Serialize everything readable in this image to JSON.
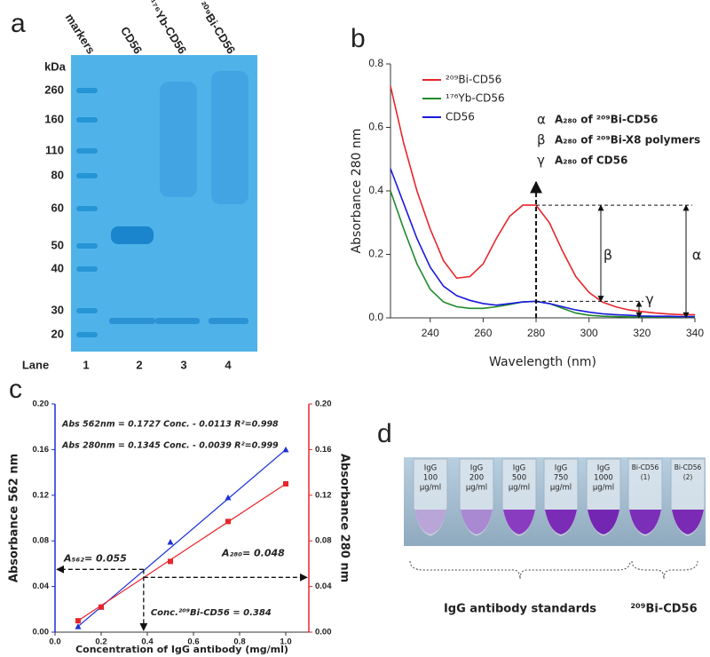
{
  "panels": {
    "a": {
      "letter": "a",
      "lane_names": [
        "markers",
        "CD56",
        "¹⁷⁶Yb-CD56",
        "²⁰⁹Bi-CD56"
      ],
      "unit": "kDa",
      "markers": [
        260,
        160,
        110,
        80,
        60,
        50,
        40,
        30,
        20
      ],
      "lane_label": "Lane",
      "lanes": [
        1,
        2,
        3,
        4
      ]
    },
    "d": {
      "letter": "d",
      "tubes": [
        [
          "IgG",
          "100",
          "µg/ml"
        ],
        [
          "IgG",
          "200",
          "µg/ml"
        ],
        [
          "IgG",
          "500",
          "µg/ml"
        ],
        [
          "IgG",
          "750",
          "µg/ml"
        ],
        [
          "IgG",
          "1000",
          "µg/ml"
        ],
        [
          "Bi-CD56",
          "(1)"
        ],
        [
          "Bi-CD56",
          "(2)"
        ]
      ],
      "groups": [
        "IgG antibody standards",
        "²⁰⁹Bi-CD56"
      ]
    }
  },
  "chart_data": [
    {
      "type": "line",
      "panel_label": "b",
      "x": [
        225,
        230,
        235,
        240,
        245,
        250,
        255,
        260,
        265,
        270,
        275,
        280,
        285,
        290,
        295,
        300,
        305,
        310,
        315,
        320,
        325,
        330,
        335,
        340
      ],
      "xlim": [
        225,
        340
      ],
      "xticks": [
        240,
        260,
        280,
        300,
        320,
        340
      ],
      "ylim": [
        0,
        0.8
      ],
      "yticks": [
        {
          "value": 0,
          "label": "0.0"
        },
        0.2,
        0.4,
        0.6,
        0.8
      ],
      "x_label": "Wavelength (nm)",
      "y_label": "Absorbance 280 nm",
      "legend": "upper left",
      "series": [
        {
          "name": "²⁰⁹Bi-CD56",
          "color": "#e8262b",
          "values": [
            0.73,
            0.55,
            0.4,
            0.28,
            0.18,
            0.125,
            0.13,
            0.17,
            0.25,
            0.32,
            0.355,
            0.355,
            0.3,
            0.21,
            0.13,
            0.08,
            0.05,
            0.035,
            0.025,
            0.02,
            0.015,
            0.012,
            0.01,
            0.01
          ]
        },
        {
          "name": "¹⁷⁶Yb-CD56",
          "color": "#1f8a2a",
          "values": [
            0.4,
            0.28,
            0.17,
            0.09,
            0.05,
            0.035,
            0.03,
            0.03,
            0.035,
            0.042,
            0.05,
            0.052,
            0.045,
            0.03,
            0.015,
            0.008,
            0.005,
            0.004,
            0.003,
            0.003,
            0.003,
            0.003,
            0.003,
            0.003
          ]
        },
        {
          "name": "CD56",
          "color": "#1a1adc",
          "values": [
            0.47,
            0.36,
            0.25,
            0.16,
            0.1,
            0.07,
            0.055,
            0.045,
            0.04,
            0.045,
            0.05,
            0.052,
            0.045,
            0.035,
            0.025,
            0.018,
            0.013,
            0.01,
            0.008,
            0.006,
            0.005,
            0.005,
            0.004,
            0.004
          ]
        }
      ],
      "annotations": [
        {
          "symbol": "α",
          "text": "A₂₈₀ of ²⁰⁹Bi-CD56"
        },
        {
          "symbol": "β",
          "text": "A₂₈₀ of ²⁰⁹Bi-X8 polymers"
        },
        {
          "symbol": "γ",
          "text": "A₂₈₀ of CD56"
        }
      ]
    },
    {
      "type": "scatter",
      "panel_label": "c",
      "x": [
        0.1,
        0.2,
        0.5,
        0.75,
        1.0
      ],
      "xlim": [
        0,
        1.1
      ],
      "xticks": [
        {
          "value": 0,
          "label": "0.0"
        },
        0.2,
        0.4,
        0.6,
        0.8,
        {
          "value": 1,
          "label": "1.0"
        }
      ],
      "ylim": [
        0,
        0.2
      ],
      "yticks": [
        {
          "value": 0,
          "label": "0.00"
        },
        0.04,
        0.08,
        0.12,
        0.16,
        {
          "value": 0.2,
          "label": "0.20"
        }
      ],
      "y2lim": [
        0,
        0.2
      ],
      "y2ticks": [
        {
          "value": 0,
          "label": "0.00"
        },
        0.04,
        0.08,
        0.12,
        0.16,
        {
          "value": 0.2,
          "label": "0.20"
        }
      ],
      "x_label": "Concentration of IgG antibody (mg/ml)",
      "y_label": "Absorbance 562 nm",
      "y2_label": "Absorbance 280 nm",
      "series": [
        {
          "color": "#1a2fd6",
          "marker": "triangle",
          "axis": "y",
          "values": [
            0.005,
            0.022,
            0.079,
            0.118,
            0.16
          ],
          "equation": "Abs 562nm = 0.1727 Conc. - 0.0113  R²=0.998"
        },
        {
          "color": "#e8262b",
          "marker": "square",
          "axis": "y2",
          "values": [
            0.01,
            0.022,
            0.062,
            0.097,
            0.13
          ],
          "equation": "Abs 280nm = 0.1345 Conc. - 0.0039  R²=0.999"
        }
      ],
      "readouts": [
        {
          "axis": "y",
          "value": 0.055,
          "label": "A₅₆₂= 0.055"
        },
        {
          "axis": "y2",
          "value": 0.048,
          "label": "A₂₈₀= 0.048"
        },
        {
          "axis": "x",
          "value": 0.384,
          "label": "Conc.²⁰⁹Bi-CD56 = 0.384"
        }
      ]
    }
  ]
}
